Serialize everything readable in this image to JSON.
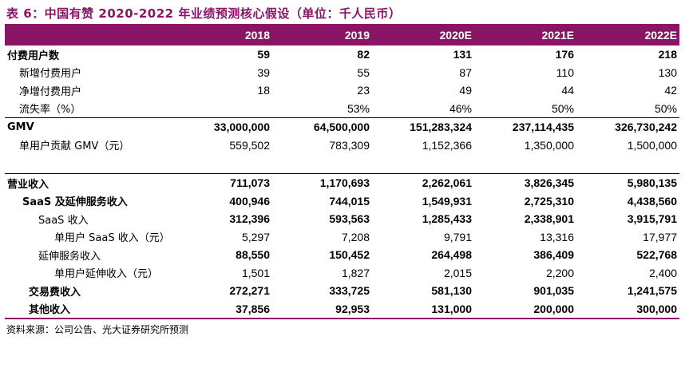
{
  "title": "表 6：中国有赞 2020-2022 年业绩预测核心假设（单位：千人民币）",
  "columns": [
    "2018",
    "2019",
    "2020E",
    "2021E",
    "2022E"
  ],
  "rows": [
    {
      "label": "付费用户数",
      "values": [
        "59",
        "82",
        "131",
        "176",
        "218"
      ]
    },
    {
      "label": "新增付费用户",
      "values": [
        "39",
        "55",
        "87",
        "110",
        "130"
      ]
    },
    {
      "label": "净增付费用户",
      "values": [
        "18",
        "23",
        "49",
        "44",
        "42"
      ]
    },
    {
      "label": "流失率（%）",
      "values": [
        "",
        "53%",
        "46%",
        "50%",
        "50%"
      ]
    },
    {
      "label": "GMV",
      "values": [
        "33,000,000",
        "64,500,000",
        "151,283,324",
        "237,114,435",
        "326,730,242"
      ]
    },
    {
      "label": "单用户贡献 GMV（元）",
      "values": [
        "559,502",
        "783,309",
        "1,152,366",
        "1,350,000",
        "1,500,000"
      ]
    },
    {
      "label": "营业收入",
      "values": [
        "711,073",
        "1,170,693",
        "2,262,061",
        "3,826,345",
        "5,980,135"
      ]
    },
    {
      "label": "SaaS 及延伸服务收入",
      "values": [
        "400,946",
        "744,015",
        "1,549,931",
        "2,725,310",
        "4,438,560"
      ]
    },
    {
      "label": "SaaS 收入",
      "values": [
        "312,396",
        "593,563",
        "1,285,433",
        "2,338,901",
        "3,915,791"
      ]
    },
    {
      "label": "单用户 SaaS 收入（元）",
      "values": [
        "5,297",
        "7,208",
        "9,791",
        "13,316",
        "17,977"
      ]
    },
    {
      "label": "延伸服务收入",
      "values": [
        "88,550",
        "150,452",
        "264,498",
        "386,409",
        "522,768"
      ]
    },
    {
      "label": "单用户延伸收入（元）",
      "values": [
        "1,501",
        "1,827",
        "2,015",
        "2,200",
        "2,400"
      ]
    },
    {
      "label": "交易费收入",
      "values": [
        "272,271",
        "333,725",
        "581,130",
        "901,035",
        "1,241,575"
      ]
    },
    {
      "label": "其他收入",
      "values": [
        "37,856",
        "92,953",
        "131,000",
        "200,000",
        "300,000"
      ]
    }
  ],
  "source": "资料来源：公司公告、光大证券研究所预测",
  "colors": {
    "accent": "#8a1466"
  }
}
